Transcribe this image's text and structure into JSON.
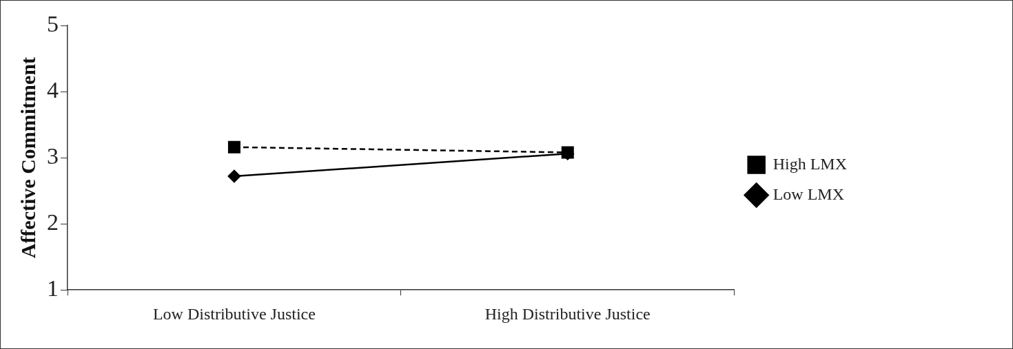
{
  "chart_data": {
    "type": "line",
    "ylabel": "Affective Commitment",
    "categories": [
      "Low Distributive Justice",
      "High Distributive Justice"
    ],
    "series": [
      {
        "name": "Low LMX",
        "color": "#000000",
        "values": [
          2.72,
          3.06
        ],
        "marker": "diamond",
        "line_style": "solid"
      },
      {
        "name": "High LMX",
        "color": "#000000",
        "values": [
          3.16,
          3.08
        ],
        "marker": "square",
        "line_style": "dashed"
      }
    ],
    "ylim": [
      1,
      5
    ],
    "yticks": [
      1,
      2,
      3,
      4,
      5
    ],
    "grid": false,
    "legend": "right"
  }
}
